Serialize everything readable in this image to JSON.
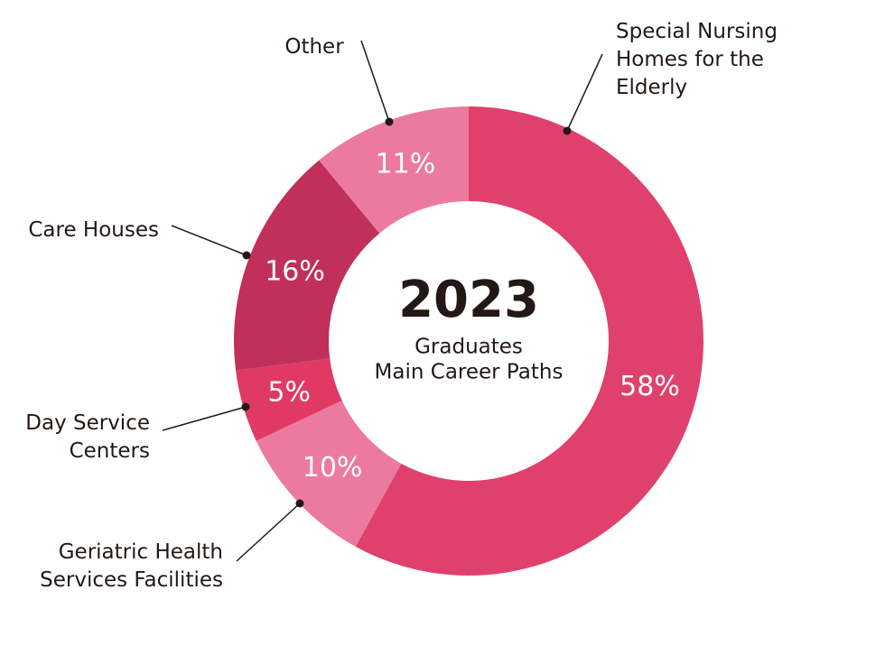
{
  "chart_data": {
    "type": "donut",
    "title": "2023",
    "subtitle": [
      "Graduates",
      "Main Career Paths"
    ],
    "categories": [
      "Special Nursing Homes for the Elderly",
      "Geriatric Health Services Facilities",
      "Day Service Centers",
      "Care Houses",
      "Other"
    ],
    "values": [
      58,
      10,
      5,
      16,
      11
    ],
    "value_labels": [
      "58%",
      "10%",
      "5%",
      "16%",
      "11%"
    ],
    "colors": [
      "#e0416c",
      "#ec7aa0",
      "#e03a64",
      "#c0305a",
      "#ec7aa0"
    ]
  }
}
